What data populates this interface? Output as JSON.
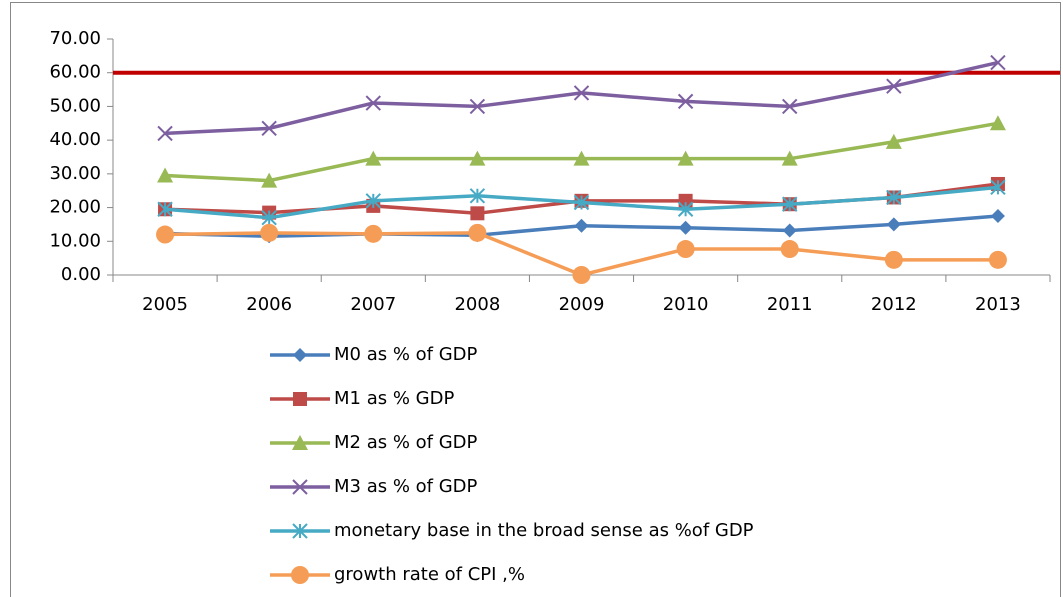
{
  "chart_data": {
    "type": "line",
    "categories": [
      "2005",
      "2006",
      "2007",
      "2008",
      "2009",
      "2010",
      "2011",
      "2012",
      "2013"
    ],
    "series": [
      {
        "name": "M0 as % of GDP",
        "color": "#4a7ebb",
        "marker": "diamond",
        "values": [
          12.3,
          11.5,
          12.2,
          11.8,
          14.6,
          14,
          13.2,
          15,
          17.5
        ]
      },
      {
        "name": "M1 as % GDP",
        "color": "#be4b48",
        "marker": "square",
        "values": [
          19.5,
          18.5,
          20.5,
          18.3,
          22,
          22,
          21,
          23,
          27
        ]
      },
      {
        "name": "M2 as % of GDP",
        "color": "#98b954",
        "marker": "triangle",
        "values": [
          29.5,
          28,
          34.5,
          34.5,
          34.5,
          34.5,
          34.5,
          39.5,
          45
        ]
      },
      {
        "name": "M3 as % of GDP",
        "color": "#7d5fa0",
        "marker": "x",
        "values": [
          42,
          43.5,
          51,
          50,
          54,
          51.5,
          50,
          56,
          63
        ]
      },
      {
        "name": "monetary base in the broad sense as %of GDP",
        "color": "#46aac5",
        "marker": "asterisk",
        "values": [
          19.5,
          17,
          22,
          23.5,
          21.5,
          19.5,
          21,
          23,
          26
        ]
      },
      {
        "name": "growth rate of CPI ,%",
        "color": "#f59d56",
        "marker": "circle",
        "values": [
          12,
          12.5,
          12.2,
          12.5,
          0,
          7.7,
          7.7,
          4.5,
          4.5
        ]
      }
    ],
    "reference_line": {
      "value": 60,
      "color": "#c00000"
    },
    "ylim": [
      0,
      70
    ],
    "yticks": [
      {
        "value": 0,
        "label": "0.00"
      },
      {
        "value": 10,
        "label": "10.00"
      },
      {
        "value": 20,
        "label": "20.00"
      },
      {
        "value": 30,
        "label": "30.00"
      },
      {
        "value": 40,
        "label": "40.00"
      },
      {
        "value": 50,
        "label": "50.00"
      },
      {
        "value": 60,
        "label": "60.00"
      },
      {
        "value": 70,
        "label": "70.00"
      }
    ]
  }
}
